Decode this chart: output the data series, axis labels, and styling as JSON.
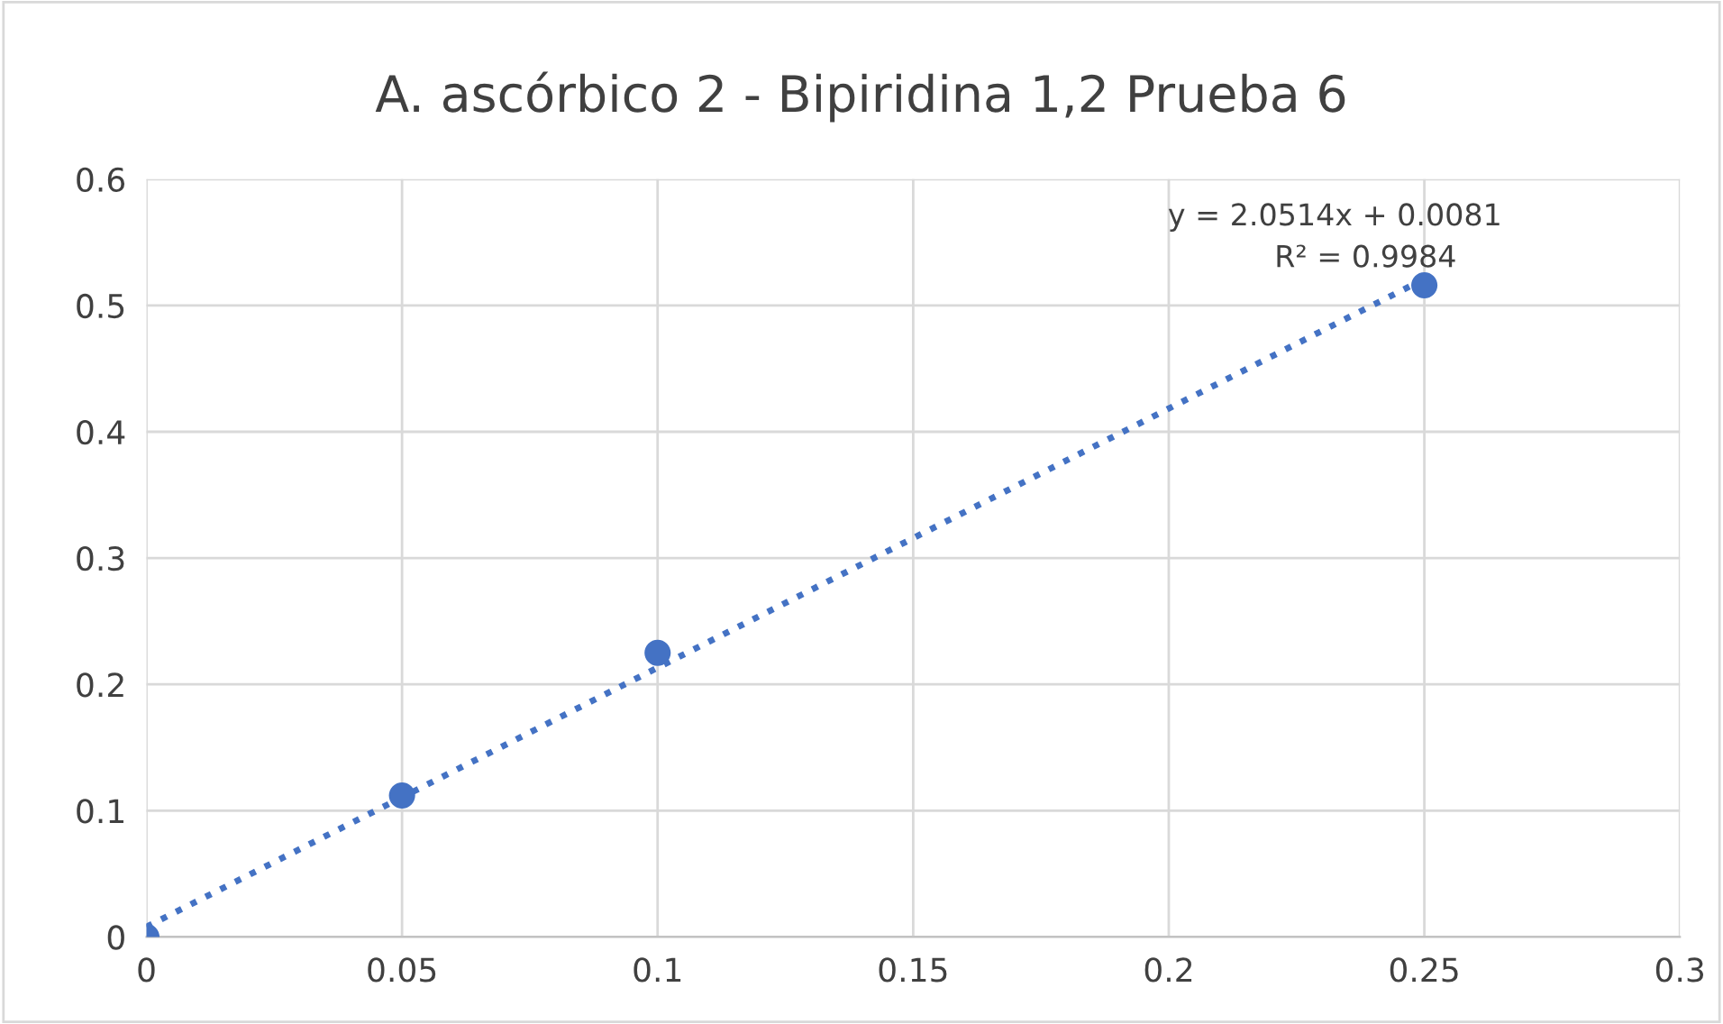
{
  "chart_data": {
    "type": "scatter",
    "title": "A. ascórbico 2 - Bipiridina 1,2 Prueba 6",
    "x": [
      0,
      0.05,
      0.1,
      0.25
    ],
    "series": [
      {
        "color": "#4472c4",
        "marker": "circle",
        "values": [
          0,
          0.112,
          0.225,
          0.516
        ]
      },
      {
        "type": "line",
        "color": "#4472c4",
        "line_style": "dotted",
        "marker": "none",
        "x": [
          0,
          0.25
        ],
        "values": [
          0.008,
          0.521
        ]
      }
    ],
    "xlim": [
      0,
      0.3
    ],
    "xticks": [
      0,
      0.05,
      0.1,
      0.15,
      0.2,
      0.25,
      0.3
    ],
    "ylim": [
      0,
      0.6
    ],
    "yticks": [
      0,
      0.1,
      0.2,
      0.3,
      0.4,
      0.5,
      0.6
    ],
    "grid": true,
    "legend": false,
    "annotations": [
      "y = 2.0514x + 0.0081",
      "R² = 0.9984"
    ]
  }
}
